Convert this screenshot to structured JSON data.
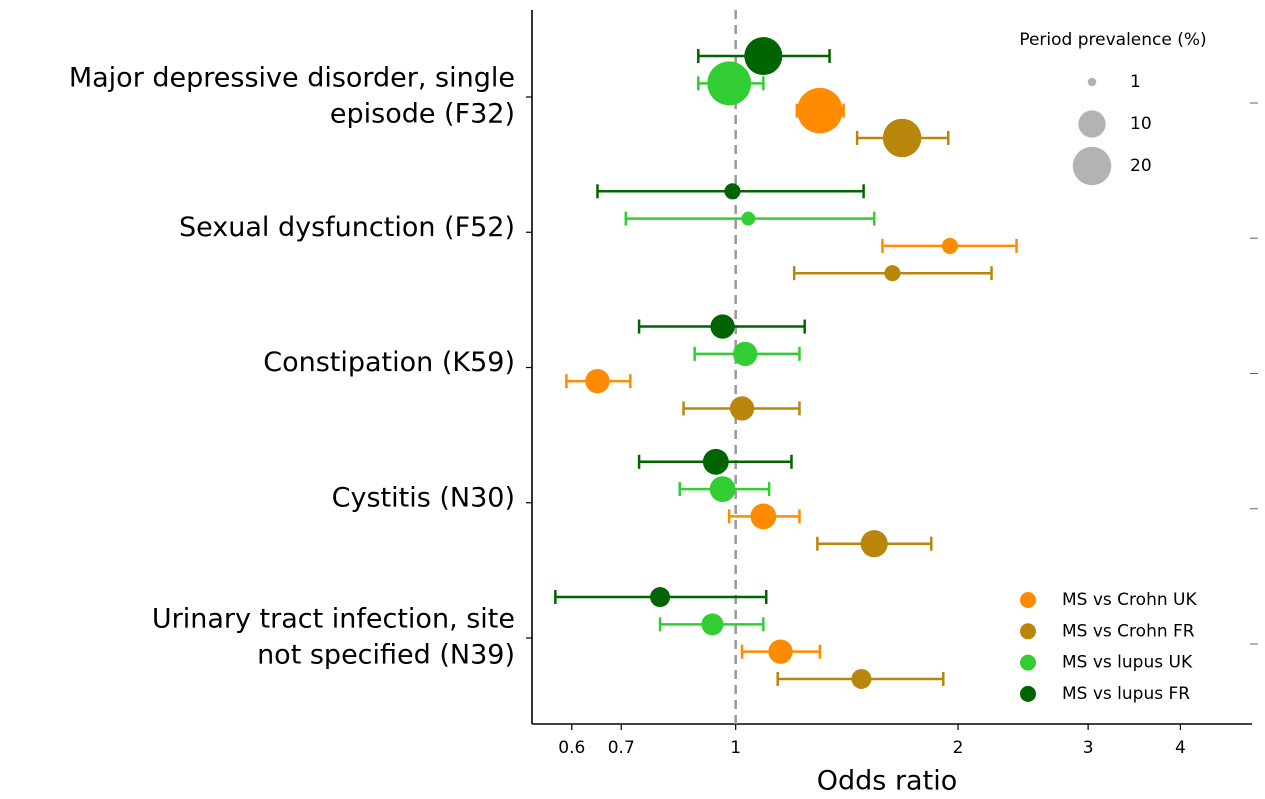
{
  "chart_data": {
    "type": "forest",
    "xlabel": "Odds ratio",
    "xscale": "log",
    "xlim": [
      0.53,
      5.0
    ],
    "xticks": [
      0.6,
      0.7,
      1,
      2,
      3,
      4
    ],
    "reference_line": 1,
    "categories": [
      [
        "Major depressive disorder, single",
        "episode (F32)"
      ],
      [
        "Sexual dysfunction (F52)"
      ],
      [
        "Constipation (K59)"
      ],
      [
        "Cystitis (N30)"
      ],
      [
        "Urinary tract infection, site",
        "not specified (N39)"
      ]
    ],
    "series": [
      {
        "name": "MS vs Crohn UK",
        "color": "#ff8c00",
        "values": [
          1.3,
          1.95,
          0.65,
          1.09,
          1.15
        ],
        "lower": [
          1.21,
          1.58,
          0.59,
          0.98,
          1.02
        ],
        "upper": [
          1.4,
          2.4,
          0.72,
          1.22,
          1.3
        ],
        "prevalence": [
          28,
          3.5,
          8,
          9,
          8
        ]
      },
      {
        "name": "MS vs Crohn FR",
        "color": "#b8860b",
        "values": [
          1.68,
          1.63,
          1.02,
          1.54,
          1.48
        ],
        "lower": [
          1.46,
          1.2,
          0.85,
          1.29,
          1.14
        ],
        "upper": [
          1.94,
          2.22,
          1.22,
          1.84,
          1.91
        ],
        "prevalence": [
          20,
          3.5,
          8,
          10,
          5.4
        ]
      },
      {
        "name": "MS vs lupus UK",
        "color": "#32cd32",
        "values": [
          0.98,
          1.04,
          1.03,
          0.96,
          0.93
        ],
        "lower": [
          0.89,
          0.71,
          0.88,
          0.84,
          0.79
        ],
        "upper": [
          1.09,
          1.54,
          1.22,
          1.11,
          1.09
        ],
        "prevalence": [
          26,
          2.6,
          8,
          9,
          6.5
        ]
      },
      {
        "name": "MS vs lupus FR",
        "color": "#006400",
        "values": [
          1.09,
          0.99,
          0.96,
          0.94,
          0.79
        ],
        "lower": [
          0.89,
          0.65,
          0.74,
          0.74,
          0.57
        ],
        "upper": [
          1.34,
          1.49,
          1.24,
          1.19,
          1.1
        ],
        "prevalence": [
          19.5,
          3.5,
          8,
          9,
          5.4
        ]
      }
    ],
    "size_legend": {
      "title": "Period prevalence (%)",
      "color": "#b3b3b3",
      "values": [
        1,
        10,
        20
      ]
    }
  }
}
